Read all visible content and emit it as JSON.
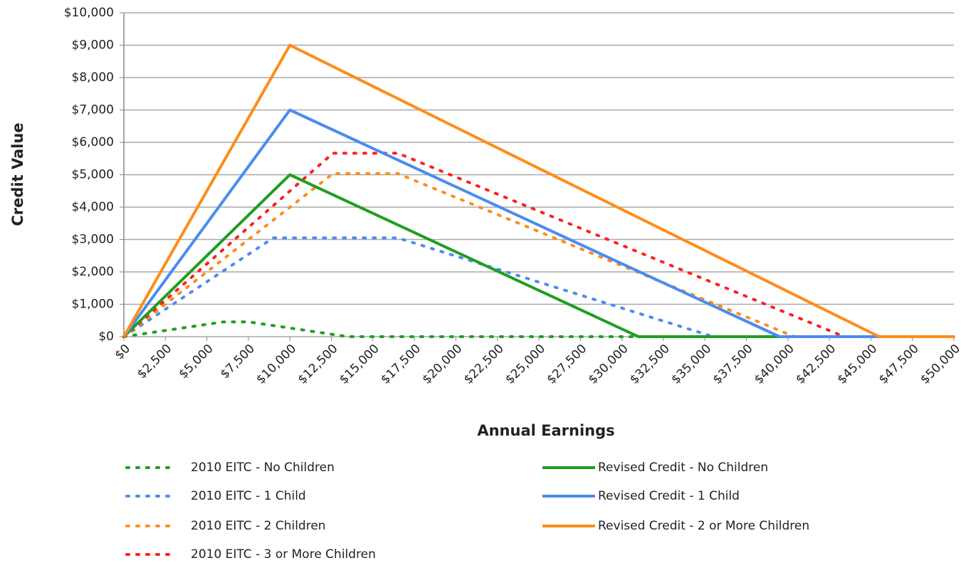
{
  "chart_data": {
    "type": "line",
    "xlabel": "Annual Earnings",
    "ylabel": "Credit Value",
    "xlim": [
      0,
      50000
    ],
    "ylim": [
      0,
      10000
    ],
    "grid": true,
    "xticks": [
      {
        "value": 0,
        "label": "$0"
      },
      {
        "value": 2500,
        "label": "$2,500"
      },
      {
        "value": 5000,
        "label": "$5,000"
      },
      {
        "value": 7500,
        "label": "$7,500"
      },
      {
        "value": 10000,
        "label": "$10,000"
      },
      {
        "value": 12500,
        "label": "$12,500"
      },
      {
        "value": 15000,
        "label": "$15,000"
      },
      {
        "value": 17500,
        "label": "$17,500"
      },
      {
        "value": 20000,
        "label": "$20,000"
      },
      {
        "value": 22500,
        "label": "$22,500"
      },
      {
        "value": 25000,
        "label": "$25,000"
      },
      {
        "value": 27500,
        "label": "$27,500"
      },
      {
        "value": 30000,
        "label": "$30,000"
      },
      {
        "value": 32500,
        "label": "$32,500"
      },
      {
        "value": 35000,
        "label": "$35,000"
      },
      {
        "value": 37500,
        "label": "$37,500"
      },
      {
        "value": 40000,
        "label": "$40,000"
      },
      {
        "value": 42500,
        "label": "$42,500"
      },
      {
        "value": 45000,
        "label": "$45,000"
      },
      {
        "value": 47500,
        "label": "$47,500"
      },
      {
        "value": 50000,
        "label": "$50,000"
      }
    ],
    "yticks": [
      {
        "value": 0,
        "label": "$0"
      },
      {
        "value": 1000,
        "label": "$1,000"
      },
      {
        "value": 2000,
        "label": "$2,000"
      },
      {
        "value": 3000,
        "label": "$3,000"
      },
      {
        "value": 4000,
        "label": "$4,000"
      },
      {
        "value": 5000,
        "label": "$5,000"
      },
      {
        "value": 6000,
        "label": "$6,000"
      },
      {
        "value": 7000,
        "label": "$7,000"
      },
      {
        "value": 8000,
        "label": "$8,000"
      },
      {
        "value": 9000,
        "label": "$9,000"
      },
      {
        "value": 10000,
        "label": "$10,000"
      }
    ],
    "series": [
      {
        "name": "2010 EITC - No Children",
        "color": "#1f9e1f",
        "style": "dotted",
        "x": [
          0,
          6000,
          7500,
          13500,
          50000
        ],
        "values": [
          0,
          457,
          457,
          0,
          0
        ]
      },
      {
        "name": "2010 EITC - 1 Child",
        "color": "#4a8cf0",
        "style": "dotted",
        "x": [
          0,
          9000,
          16500,
          35500,
          50000
        ],
        "values": [
          0,
          3050,
          3050,
          0,
          0
        ]
      },
      {
        "name": "2010 EITC - 2 Children",
        "color": "#ff8c1a",
        "style": "dotted",
        "x": [
          0,
          12600,
          16500,
          40400,
          50000
        ],
        "values": [
          0,
          5036,
          5036,
          0,
          0
        ]
      },
      {
        "name": "2010 EITC - 3 or More Children",
        "color": "#ff2020",
        "style": "dotted",
        "x": [
          0,
          12600,
          16500,
          43400,
          50000
        ],
        "values": [
          0,
          5666,
          5666,
          0,
          0
        ]
      },
      {
        "name": "Revised Credit - No Children",
        "color": "#1f9e1f",
        "style": "solid",
        "x": [
          0,
          10000,
          31000,
          50000
        ],
        "values": [
          0,
          5000,
          0,
          0
        ]
      },
      {
        "name": "Revised Credit - 1 Child",
        "color": "#4a8cf0",
        "style": "solid",
        "x": [
          0,
          10000,
          39500,
          50000
        ],
        "values": [
          0,
          7000,
          0,
          0
        ]
      },
      {
        "name": "Revised Credit - 2 or More Children",
        "color": "#ff8c1a",
        "style": "solid",
        "x": [
          0,
          10000,
          45500,
          50000
        ],
        "values": [
          0,
          9000,
          0,
          0
        ]
      }
    ]
  }
}
